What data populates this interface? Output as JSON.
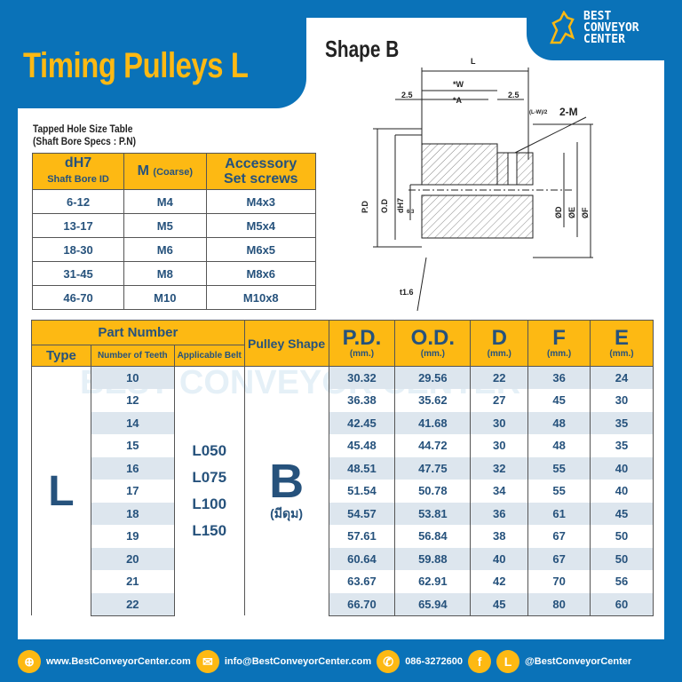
{
  "header": {
    "title": "Timing Pulleys L",
    "shape_title": "Shape B",
    "logo": "BEST CONVEYOR CENTER"
  },
  "colors": {
    "brand_blue": "#0a72b8",
    "accent_yellow": "#fdb913",
    "text": "#26527c",
    "row_shade": "#dde6ee"
  },
  "diagram": {
    "labels": [
      "L",
      "*W",
      "*A",
      "2.5",
      "2.5",
      "(L-W)/2",
      "2-M",
      "P.D",
      "O.D",
      "dH7",
      "6.3",
      "ØD",
      "ØE",
      "ØF",
      "t1.6"
    ]
  },
  "tapped_table": {
    "caption1": "Tapped Hole Size Table",
    "caption2": "(Shaft Bore Specs : P.N)",
    "headers": {
      "c1": "dH7",
      "c1_sub": "Shaft Bore ID",
      "c2": "M",
      "c2_sub": "(Coarse)",
      "c3a": "Accessory",
      "c3b": "Set screws"
    },
    "rows": [
      [
        "6-12",
        "M4",
        "M4x3"
      ],
      [
        "13-17",
        "M5",
        "M5x4"
      ],
      [
        "18-30",
        "M6",
        "M6x5"
      ],
      [
        "31-45",
        "M8",
        "M8x6"
      ],
      [
        "46-70",
        "M10",
        "M10x8"
      ]
    ]
  },
  "main_table": {
    "headers": {
      "part_number": "Part Number",
      "type": "Type",
      "teeth": "Number of Teeth",
      "belt": "Applicable Belt",
      "shape": "Pulley Shape",
      "pd": "P.D.",
      "od": "O.D.",
      "d": "D",
      "f": "F",
      "e": "E",
      "unit": "(mm.)"
    },
    "type": "L",
    "belts": [
      "L050",
      "L075",
      "L100",
      "L150"
    ],
    "shape": "B",
    "shape_note": "(มีดุม)",
    "rows": [
      [
        "10",
        "30.32",
        "29.56",
        "22",
        "36",
        "24"
      ],
      [
        "12",
        "36.38",
        "35.62",
        "27",
        "45",
        "30"
      ],
      [
        "14",
        "42.45",
        "41.68",
        "30",
        "48",
        "35"
      ],
      [
        "15",
        "45.48",
        "44.72",
        "30",
        "48",
        "35"
      ],
      [
        "16",
        "48.51",
        "47.75",
        "32",
        "55",
        "40"
      ],
      [
        "17",
        "51.54",
        "50.78",
        "34",
        "55",
        "40"
      ],
      [
        "18",
        "54.57",
        "53.81",
        "36",
        "61",
        "45"
      ],
      [
        "19",
        "57.61",
        "56.84",
        "38",
        "67",
        "50"
      ],
      [
        "20",
        "60.64",
        "59.88",
        "40",
        "67",
        "50"
      ],
      [
        "21",
        "63.67",
        "62.91",
        "42",
        "70",
        "56"
      ],
      [
        "22",
        "66.70",
        "65.94",
        "45",
        "80",
        "60"
      ]
    ]
  },
  "footer": {
    "website": "www.BestConveyorCenter.com",
    "email": "info@BestConveyorCenter.com",
    "phone": "086-3272600",
    "social": "@BestConveyorCenter"
  }
}
